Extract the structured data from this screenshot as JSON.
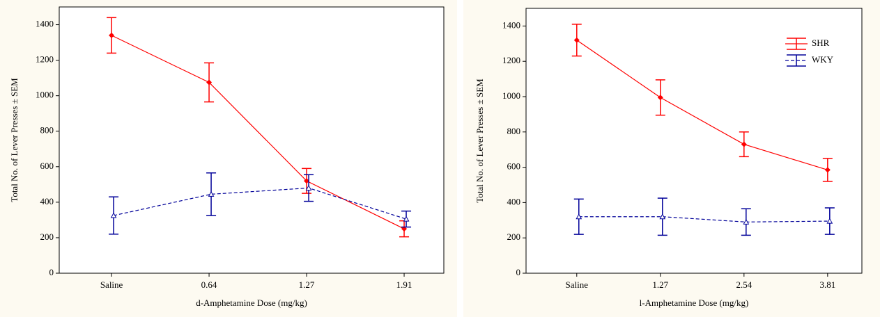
{
  "chart_data": [
    {
      "type": "line",
      "x_label": "d-Amphetamine Dose (mg/kg)",
      "y_label": "Total No. of Lever Presses ± SEM",
      "categories": [
        "Saline",
        "0.64",
        "1.27",
        "1.91"
      ],
      "ylim": [
        0,
        1500
      ],
      "yticks": [
        0,
        200,
        400,
        600,
        800,
        1000,
        1200,
        1400
      ],
      "series": [
        {
          "name": "SHR",
          "color": "#ff0000",
          "values": [
            1340,
            1075,
            520,
            250
          ],
          "errors": [
            100,
            110,
            70,
            45
          ]
        },
        {
          "name": "WKY",
          "color": "#000099",
          "values": [
            325,
            445,
            480,
            305
          ],
          "errors": [
            105,
            120,
            75,
            45
          ]
        }
      ]
    },
    {
      "type": "line",
      "x_label": "l-Amphetamine Dose (mg/kg)",
      "y_label": "Total No. of Lever Presses ± SEM",
      "categories": [
        "Saline",
        "1.27",
        "2.54",
        "3.81"
      ],
      "ylim": [
        0,
        1500
      ],
      "yticks": [
        0,
        200,
        400,
        600,
        800,
        1000,
        1200,
        1400
      ],
      "legend": "upper right",
      "series": [
        {
          "name": "SHR",
          "color": "#ff0000",
          "values": [
            1320,
            995,
            730,
            585
          ],
          "errors": [
            90,
            100,
            70,
            65
          ]
        },
        {
          "name": "WKY",
          "color": "#000099",
          "values": [
            320,
            320,
            290,
            295
          ],
          "errors": [
            100,
            105,
            75,
            75
          ]
        }
      ]
    }
  ]
}
